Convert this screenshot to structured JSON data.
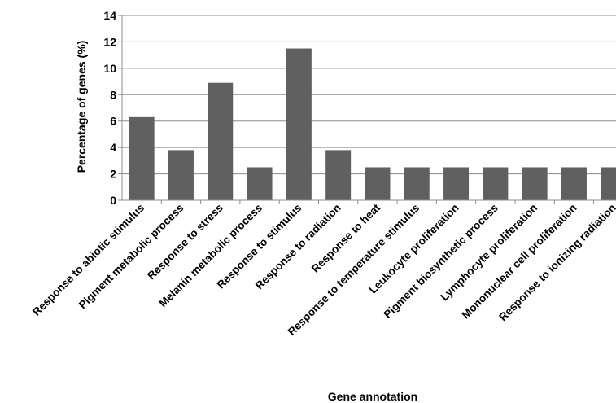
{
  "chart_data": {
    "type": "bar",
    "title": "",
    "xlabel": "Gene annotation",
    "ylabel": "Percentage of genes (%)",
    "ylim": [
      0,
      14
    ],
    "yticks": [
      0,
      2,
      4,
      6,
      8,
      10,
      12,
      14
    ],
    "grid": true,
    "legend": "none",
    "bar_color": "#606060",
    "categories": [
      "Response to abiotic stimulus",
      "Pigment metabolic process",
      "Response to stress",
      "Melanin metabolic process",
      "Response to stimulus",
      "Response to radiation",
      "Response to heat",
      "Response to temperature stimulus",
      "Leukocyte proliferation",
      "Pigment biosynthetic process",
      "Lymphocyte proliferation",
      "Mononuclear cell proliferation",
      "Response to ionizing radiation"
    ],
    "values": [
      6.3,
      3.8,
      8.9,
      2.5,
      11.5,
      3.8,
      2.5,
      2.5,
      2.5,
      2.5,
      2.5,
      2.5,
      2.5
    ]
  }
}
